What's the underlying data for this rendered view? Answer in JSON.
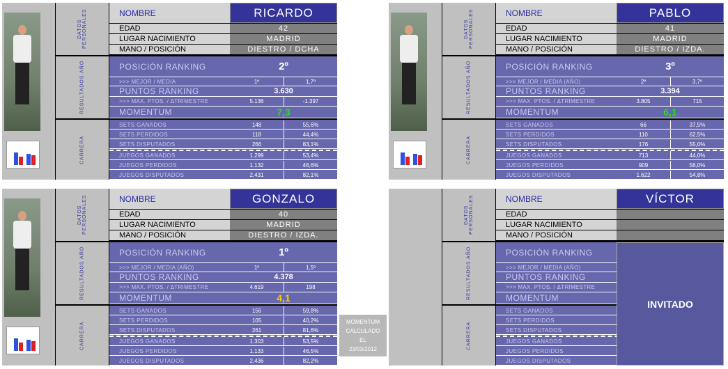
{
  "cards": [
    {
      "personal": {
        "title": "DATOS PERSONALES",
        "rows": [
          {
            "label": "NOMBRE",
            "value": "RICARDO"
          },
          {
            "label": "EDAD",
            "value": "42"
          },
          {
            "label": "LUGAR NACIMIENTO",
            "value": "MADRID"
          },
          {
            "label": "MANO / POSICIÓN",
            "value": "DIESTRO / DCHA"
          }
        ]
      },
      "results": {
        "title": "RESULTADOS AÑO",
        "rows": [
          {
            "label": "POSICIÓN RANKING",
            "values": [
              "2º"
            ]
          },
          {
            "label": ">>> MEJOR / MEDIA",
            "values": [
              "1º",
              "1,7º"
            ]
          },
          {
            "label": "PUNTOS RANKING",
            "values": [
              "3.630"
            ]
          },
          {
            "label": ">>> MAX. PTOS. / ΔTRIMESTRE",
            "values": [
              "5.136",
              "-1.397"
            ]
          },
          {
            "label": "MOMENTUM",
            "values": [
              "7,3"
            ],
            "color": "#22dd22"
          }
        ]
      },
      "career": {
        "title": "CARRERA",
        "rows": [
          {
            "label": "SETS GANADOS",
            "values": [
              "148",
              "55,6%"
            ]
          },
          {
            "label": "SETS PERDIDOS",
            "values": [
              "118",
              "44,4%"
            ]
          },
          {
            "label": "SETS DISPUTADOS",
            "values": [
              "266",
              "83,1%"
            ]
          },
          {
            "label": "JUEGOS GANADOS",
            "values": [
              "1.299",
              "53,4%"
            ]
          },
          {
            "label": "JUEGOS PERDIDOS",
            "values": [
              "1.132",
              "46,6%"
            ]
          },
          {
            "label": "JUEGOS DISPUTADOS",
            "values": [
              "2.431",
              "82,1%"
            ]
          }
        ]
      }
    },
    {
      "personal": {
        "title": "DATOS PERSONALES",
        "rows": [
          {
            "label": "NOMBRE",
            "value": "PABLO"
          },
          {
            "label": "EDAD",
            "value": "41"
          },
          {
            "label": "LUGAR NACIMIENTO",
            "value": "MADRID"
          },
          {
            "label": "MANO / POSICIÓN",
            "value": "DIESTRO / IZDA."
          }
        ]
      },
      "results": {
        "title": "RESULTADOS AÑO",
        "rows": [
          {
            "label": "POSICIÓN RANKING",
            "values": [
              "3º"
            ]
          },
          {
            "label": ">>> MEJOR / MEDIA (AÑO)",
            "values": [
              "2º",
              "3,7º"
            ]
          },
          {
            "label": "PUNTOS RANKING",
            "values": [
              "3.394"
            ]
          },
          {
            "label": ">>> MAX. PTOS. / ΔTRIMESTRE",
            "values": [
              "3.805",
              "715"
            ]
          },
          {
            "label": "MOMENTUM",
            "values": [
              "6,1"
            ],
            "color": "#22dd22"
          }
        ]
      },
      "career": {
        "title": "CARRERA",
        "rows": [
          {
            "label": "SETS GANADOS",
            "values": [
              "66",
              "37,5%"
            ]
          },
          {
            "label": "SETS PERDIDOS",
            "values": [
              "110",
              "62,5%"
            ]
          },
          {
            "label": "SETS DISPUTADOS",
            "values": [
              "176",
              "55,0%"
            ]
          },
          {
            "label": "JUEGOS GANADOS",
            "values": [
              "713",
              "44,0%"
            ]
          },
          {
            "label": "JUEGOS PERDIDOS",
            "values": [
              "909",
              "56,0%"
            ]
          },
          {
            "label": "JUEGOS DISPUTADOS",
            "values": [
              "1.622",
              "54,8%"
            ]
          }
        ]
      }
    },
    {
      "personal": {
        "title": "DATOS PERSONALES",
        "rows": [
          {
            "label": "NOMBRE",
            "value": "GONZALO"
          },
          {
            "label": "EDAD",
            "value": "40"
          },
          {
            "label": "LUGAR NACIMIENTO",
            "value": "MADRID"
          },
          {
            "label": "MANO / POSICIÓN",
            "value": "DIESTRO / IZDA."
          }
        ]
      },
      "results": {
        "title": "RESULTADOS AÑO",
        "rows": [
          {
            "label": "POSICIÓN RANKING",
            "values": [
              "1º"
            ]
          },
          {
            "label": ">>> MEJOR / MEDIA (AÑO)",
            "values": [
              "1º",
              "1,5º"
            ]
          },
          {
            "label": "PUNTOS RANKING",
            "values": [
              "4.378"
            ]
          },
          {
            "label": ">>> MAX. PTOS. / ΔTRIMESTRE",
            "values": [
              "4.619",
              "198"
            ]
          },
          {
            "label": "MOMENTUM",
            "values": [
              "4,1"
            ],
            "color": "#ffcc00"
          }
        ]
      },
      "career": {
        "title": "CARRERA",
        "rows": [
          {
            "label": "SETS GANADOS",
            "values": [
              "156",
              "59,8%"
            ]
          },
          {
            "label": "SETS PERDIDOS",
            "values": [
              "105",
              "40,2%"
            ]
          },
          {
            "label": "SETS DISPUTADOS",
            "values": [
              "261",
              "81,6%"
            ]
          },
          {
            "label": "JUEGOS GANADOS",
            "values": [
              "1.303",
              "53,5%"
            ]
          },
          {
            "label": "JUEGOS PERDIDOS",
            "values": [
              "1.133",
              "46,5%"
            ]
          },
          {
            "label": "JUEGOS DISPUTADOS",
            "values": [
              "2.436",
              "82,2%"
            ]
          }
        ]
      }
    },
    {
      "invitado": "INVITADO",
      "personal": {
        "title": "DATOS PERSONALES",
        "rows": [
          {
            "label": "NOMBRE",
            "value": "VÍCTOR"
          },
          {
            "label": "EDAD"
          },
          {
            "label": "LUGAR NACIMIENTO"
          },
          {
            "label": "MANO / POSICIÓN"
          }
        ]
      },
      "results": {
        "title": "RESULTADOS AÑO",
        "rows": [
          {
            "label": "POSICIÓN RANKING"
          },
          {
            "label": ">>> MEJOR / MEDIA (AÑO)"
          },
          {
            "label": "PUNTOS RANKING"
          },
          {
            "label": ">>> MAX. PTOS. / ΔTRIMESTRE"
          },
          {
            "label": "MOMENTUM"
          }
        ]
      },
      "career": {
        "title": "CARRERA",
        "rows": [
          {
            "label": "SETS GANADOS"
          },
          {
            "label": "SETS PERDIDOS"
          },
          {
            "label": "SETS DISPUTADOS"
          },
          {
            "label": "JUEGOS GANADOS"
          },
          {
            "label": "JUEGOS PERDIDOS"
          },
          {
            "label": "JUEGOS DISPUTADOS"
          }
        ]
      }
    }
  ],
  "note": {
    "lines": [
      "MOMENTUM",
      "CALCULADO",
      "EL",
      "23/03/2012"
    ]
  }
}
